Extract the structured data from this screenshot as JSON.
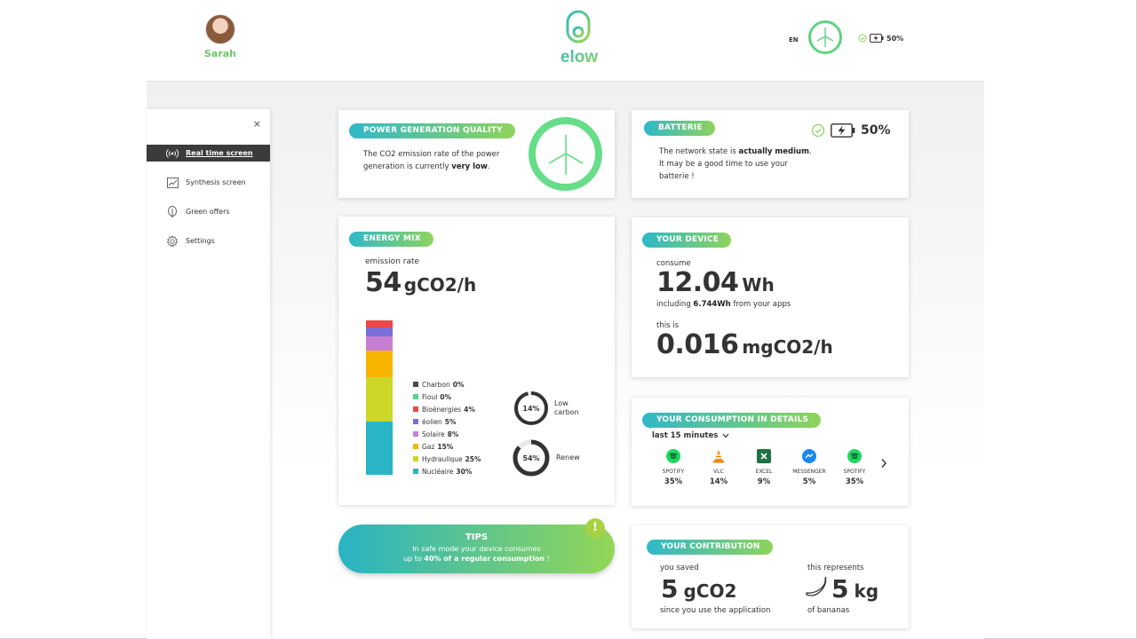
{
  "header": {
    "user_name": "Sarah",
    "logo_text": "elow",
    "language": "EN",
    "battery_percent": "50%"
  },
  "sidebar": {
    "close": "×",
    "items": [
      {
        "label": "Real time screen",
        "icon": "realtime-icon",
        "active": true
      },
      {
        "label": "Synthesis screen",
        "icon": "chart-icon",
        "active": false
      },
      {
        "label": "Green offers",
        "icon": "leaf-icon",
        "active": false
      },
      {
        "label": "Settings",
        "icon": "gear-icon",
        "active": false
      }
    ]
  },
  "power_quality": {
    "title": "POWER GENERATION QUALITY",
    "text_before": "The CO2 emission rate of the power generation is currently ",
    "text_bold": "very low",
    "text_after": "."
  },
  "battery": {
    "title": "BATTERIE",
    "percent": "50%",
    "text_before": "The network state is ",
    "text_bold": "actually medium",
    "text_after": ".",
    "line2": "It may be a good time to use your",
    "line3": "batterie !"
  },
  "energy_mix": {
    "title": "ENERGY MIX",
    "emission_label": "emission rate",
    "emission_value": "54",
    "emission_unit": "gCO2/h",
    "sources": [
      {
        "name": "Charbon",
        "percent": "0%",
        "value": 0,
        "color": "#4a4a4a"
      },
      {
        "name": "Fioul",
        "percent": "0%",
        "value": 0,
        "color": "#49d98a"
      },
      {
        "name": "Bioénergies",
        "percent": "4%",
        "value": 4,
        "color": "#ef4646"
      },
      {
        "name": "éolien",
        "percent": "5%",
        "value": 5,
        "color": "#7a6fd8"
      },
      {
        "name": "Solaire",
        "percent": "8%",
        "value": 8,
        "color": "#c77fd4"
      },
      {
        "name": "Gaz",
        "percent": "15%",
        "value": 15,
        "color": "#f7b500"
      },
      {
        "name": "Hydraulique",
        "percent": "25%",
        "value": 25,
        "color": "#cdd72a"
      },
      {
        "name": "Nucléaire",
        "percent": "30%",
        "value": 30,
        "color": "#29b5c4"
      }
    ],
    "low_carbon": {
      "percent": "14%",
      "value": 14,
      "label_line1": "Low",
      "label_line2": "carbon"
    },
    "renew": {
      "percent": "54%",
      "value": 54,
      "label": "Renew"
    }
  },
  "device": {
    "title": "YOUR DEVICE",
    "consume_label": "consume",
    "consume_value": "12.04",
    "consume_unit": "Wh",
    "including_before": "including ",
    "including_bold": "6.744Wh",
    "including_after": " from your apps",
    "this_is": "this is",
    "co2_value": "0.016",
    "co2_unit": "mgCO2/h"
  },
  "consumption": {
    "title": "YOUR CONSUMPTION IN DETAILS",
    "period": "last 15 minutes",
    "apps": [
      {
        "name": "SPOTIFY",
        "percent": "35%",
        "icon": "spotify-icon",
        "color": "#1ed760"
      },
      {
        "name": "VLC",
        "percent": "14%",
        "icon": "vlc-icon",
        "color": "#f28a14"
      },
      {
        "name": "EXCEL",
        "percent": "9%",
        "icon": "excel-icon",
        "color": "#1f7244"
      },
      {
        "name": "MESSENGER",
        "percent": "5%",
        "icon": "messenger-icon",
        "color": "#1b86f2"
      },
      {
        "name": "SPOTIFY",
        "percent": "35%",
        "icon": "spotify-icon",
        "color": "#1ed760"
      }
    ]
  },
  "tips": {
    "title": "TIPS",
    "line1": "In safe mode your device consumes",
    "line2_before": "up to ",
    "line2_bold": "40% of a regular consumption",
    "line2_after": " !",
    "alert": "!"
  },
  "contribution": {
    "title": "YOUR CONTRIBUTION",
    "saved_label": "you saved",
    "saved_value": "5",
    "saved_unit": "gCO2",
    "since": "since you use the application",
    "represents_label": "this represents",
    "banana_value": "5",
    "banana_unit": "kg",
    "banana_caption": "of bananas"
  },
  "colors": {
    "accent_green": "#66dd88",
    "pill_start": "#2fb8c8",
    "pill_end": "#8fd35c",
    "active_menu": "#3b3b3b"
  }
}
